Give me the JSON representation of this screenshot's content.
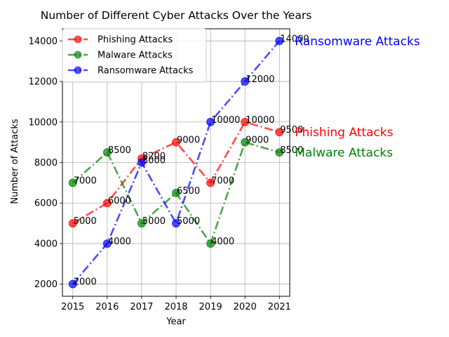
{
  "chart_data": {
    "type": "line",
    "title": "Number of Different Cyber Attacks Over the Years",
    "xlabel": "Year",
    "ylabel": "Number of Attacks",
    "x": [
      2015,
      2016,
      2017,
      2018,
      2019,
      2020,
      2021
    ],
    "x_tick_labels": [
      "2015",
      "2016",
      "2017",
      "2018",
      "2019",
      "2020",
      "2021"
    ],
    "y_ticks": [
      2000,
      4000,
      6000,
      8000,
      10000,
      12000,
      14000
    ],
    "y_tick_labels": [
      "2000",
      "4000",
      "6000",
      "8000",
      "10000",
      "12000",
      "14000"
    ],
    "xlim": [
      2014.7,
      2021.3
    ],
    "ylim": [
      1400,
      14600
    ],
    "grid": true,
    "legend_position": "top-left",
    "series": [
      {
        "name": "Phishing Attacks",
        "color": "#ff0000",
        "linestyle": "dotted-dash",
        "values": [
          5000,
          6000,
          8200,
          9000,
          7000,
          10000,
          9500
        ],
        "point_labels": [
          "5000",
          "6000",
          "8200",
          "9000",
          "7000",
          "10000",
          "9500"
        ],
        "end_label": "Phishing Attacks"
      },
      {
        "name": "Malware Attacks",
        "color": "#008000",
        "linestyle": "dash-dot",
        "values": [
          7000,
          8500,
          5000,
          6500,
          4000,
          9000,
          8500
        ],
        "point_labels": [
          "7000",
          "8500",
          "5000",
          "6500",
          "4000",
          "9000",
          "8500"
        ],
        "end_label": "Malware Attacks"
      },
      {
        "name": "Ransomware Attacks",
        "color": "#0000ff",
        "linestyle": "dash-dot",
        "values": [
          2000,
          4000,
          8000,
          5000,
          10000,
          12000,
          14000
        ],
        "point_labels": [
          "2000",
          "4000",
          "8000",
          "5000",
          "10000",
          "12000",
          "14000"
        ],
        "end_label": "Ransomware Attacks"
      }
    ]
  }
}
